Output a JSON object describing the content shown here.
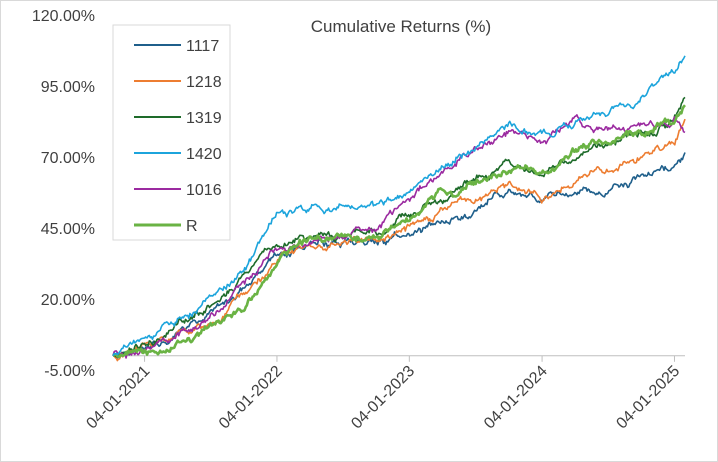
{
  "chart_data": {
    "type": "line",
    "title": "Cumulative Returns (%)",
    "xlabel": "",
    "ylabel": "",
    "ylim": [
      -5,
      120
    ],
    "y_ticks": [
      "120.00%",
      "95.00%",
      "70.00%",
      "45.00%",
      "20.00%",
      "-5.00%"
    ],
    "y_tick_values": [
      120,
      95,
      70,
      45,
      20,
      -5
    ],
    "x_ticks": [
      "04-01-2021",
      "04-01-2022",
      "04-01-2023",
      "04-01-2024",
      "04-01-2025"
    ],
    "x_start": "2021-01-04",
    "x_end": "2025-04-30",
    "x": [
      "2021-01-04",
      "2021-04-01",
      "2021-07-01",
      "2021-10-01",
      "2022-01-04",
      "2022-04-01",
      "2022-07-01",
      "2022-10-03",
      "2023-01-04",
      "2023-04-03",
      "2023-07-03",
      "2023-10-02",
      "2024-01-04",
      "2024-04-01",
      "2024-07-01",
      "2024-10-01",
      "2025-01-06",
      "2025-04-01",
      "2025-04-30"
    ],
    "legend": {
      "position": "top-left"
    },
    "grid": false,
    "series": [
      {
        "name": "1117",
        "color": "#1f5f8b",
        "values": [
          0,
          4,
          9,
          15,
          24,
          36,
          40,
          40,
          41,
          44,
          48,
          52,
          57,
          53,
          57,
          59,
          63,
          67,
          71
        ]
      },
      {
        "name": "1218",
        "color": "#ed7d31",
        "values": [
          0,
          3,
          8,
          13,
          22,
          34,
          39,
          40,
          42,
          45,
          50,
          56,
          61,
          56,
          63,
          66,
          71,
          76,
          83
        ]
      },
      {
        "name": "1319",
        "color": "#1e6b2a",
        "values": [
          0,
          5,
          11,
          18,
          28,
          40,
          43,
          43,
          45,
          50,
          56,
          62,
          66,
          66,
          71,
          75,
          79,
          84,
          91
        ]
      },
      {
        "name": "1420",
        "color": "#1ca4dc",
        "values": [
          0,
          6,
          12,
          20,
          31,
          49,
          51,
          52,
          53,
          58,
          67,
          75,
          82,
          78,
          83,
          87,
          92,
          98,
          105
        ]
      },
      {
        "name": "1016",
        "color": "#9b2aa0",
        "values": [
          0,
          2,
          8,
          12,
          24,
          38,
          41,
          44,
          47,
          55,
          66,
          74,
          80,
          76,
          82,
          80,
          80,
          84,
          79
        ]
      },
      {
        "name": "R",
        "color": "#6ab344",
        "values": [
          0,
          -1,
          5,
          9,
          17,
          33,
          39,
          41,
          42,
          49,
          57,
          62,
          67,
          66,
          72,
          75,
          79,
          83,
          88
        ]
      }
    ]
  }
}
